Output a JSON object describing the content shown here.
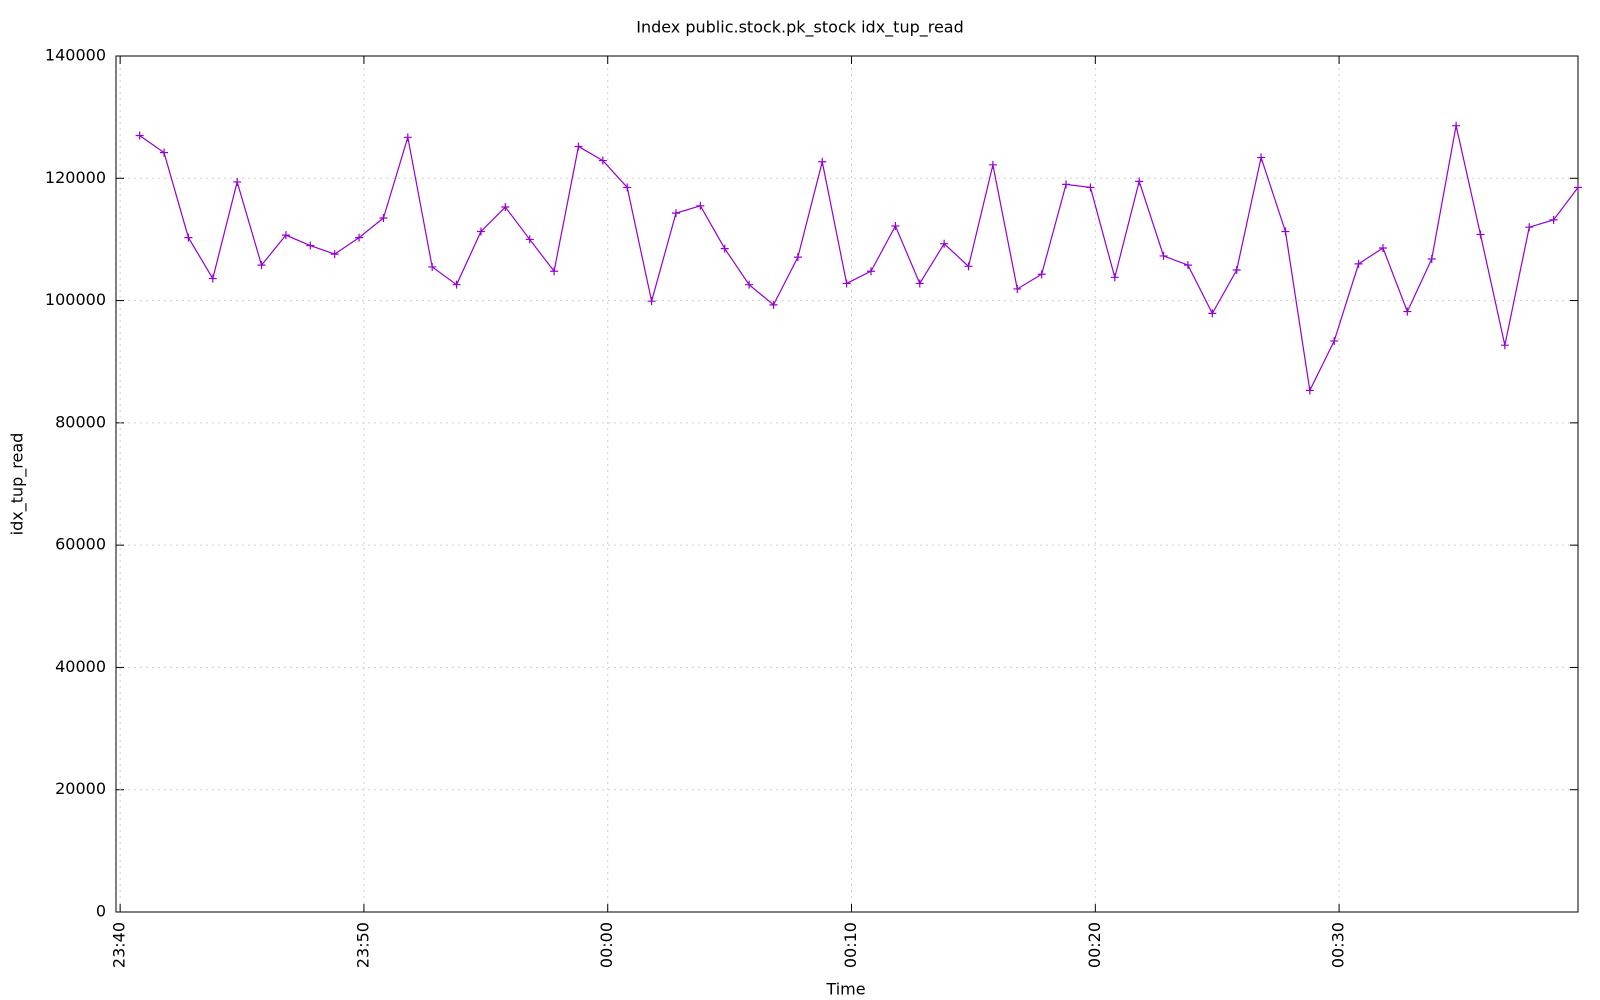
{
  "chart_data": {
    "type": "line",
    "title": "Index public.stock.pk_stock idx_tup_read",
    "x_label": "Time",
    "y_label": "idx_tup_read",
    "x": [
      0.8,
      1.8,
      2.8,
      3.8,
      4.8,
      5.8,
      6.8,
      7.8,
      8.8,
      9.8,
      10.8,
      11.8,
      12.8,
      13.8,
      14.8,
      15.8,
      16.8,
      17.8,
      18.8,
      19.8,
      20.8,
      21.8,
      22.8,
      23.8,
      24.8,
      25.8,
      26.8,
      27.8,
      28.8,
      29.8,
      30.8,
      31.8,
      32.8,
      33.8,
      34.8,
      35.8,
      36.8,
      37.8,
      38.8,
      39.8,
      40.8,
      41.8,
      42.8,
      43.8,
      44.8,
      45.8,
      46.8,
      47.8,
      48.8,
      49.8,
      50.8,
      51.8,
      52.8,
      53.8,
      54.8,
      55.8,
      56.8,
      57.8,
      58.8,
      59.8
    ],
    "series": [
      {
        "name": "idx_tup_read",
        "color": "#9400d3",
        "values": [
          127000,
          124200,
          110300,
          103600,
          119400,
          105800,
          110700,
          109000,
          107600,
          110300,
          113500,
          126700,
          105500,
          102600,
          111300,
          115300,
          110000,
          104800,
          125200,
          122900,
          118500,
          99900,
          114300,
          115500,
          108500,
          102600,
          99300,
          107100,
          122700,
          102800,
          104800,
          112200,
          102800,
          109300,
          105600,
          122200,
          101900,
          104300,
          119000,
          118500,
          103800,
          119500,
          107300,
          105800,
          97900,
          105000,
          123400,
          111300,
          85300,
          93400,
          106000,
          108600,
          98200,
          106800,
          128600,
          110800,
          92700,
          112000,
          113200,
          118500
        ]
      }
    ],
    "xlim": [
      -0.17,
      59.8
    ],
    "xticks": [
      {
        "value": 0,
        "label": "23:40"
      },
      {
        "value": 10,
        "label": "23:50"
      },
      {
        "value": 20,
        "label": "00:00"
      },
      {
        "value": 30,
        "label": "00:10"
      },
      {
        "value": 40,
        "label": "00:20"
      },
      {
        "value": 50,
        "label": "00:30"
      }
    ],
    "ylim": [
      0,
      140000
    ],
    "yticks": [
      0,
      20000,
      40000,
      60000,
      80000,
      100000,
      120000,
      140000
    ],
    "grid": true,
    "markers": "plus"
  }
}
